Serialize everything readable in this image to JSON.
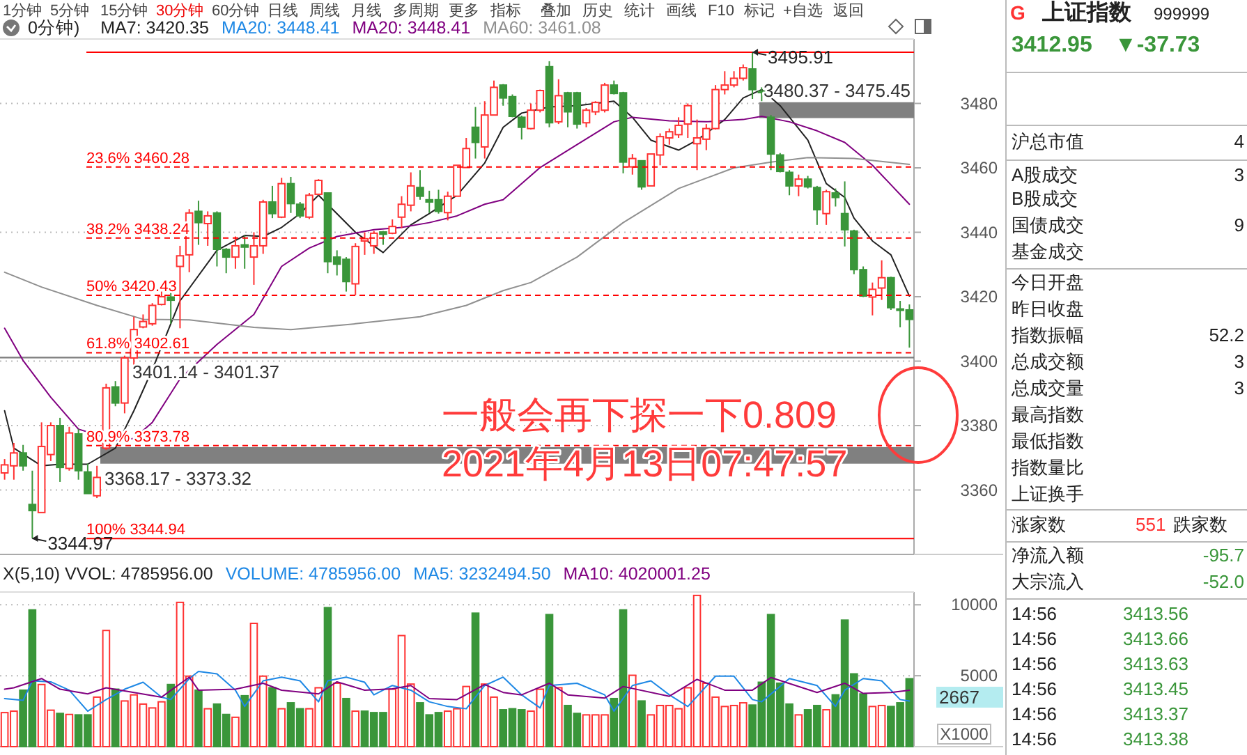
{
  "chart_data": [
    {
      "type": "candlestick",
      "categories": [
        null,
        null,
        null,
        null,
        null,
        null,
        null,
        null,
        null,
        null,
        null,
        null,
        null,
        null,
        null,
        null,
        null,
        null,
        null,
        null,
        null,
        null,
        null,
        null,
        null,
        null,
        null,
        null,
        null,
        null,
        null,
        null,
        null,
        null,
        null,
        null,
        null,
        null,
        null,
        null,
        null,
        null,
        null,
        null,
        null,
        null,
        null,
        null,
        null,
        null,
        null,
        null,
        null,
        null,
        null,
        null,
        null,
        null,
        null,
        null,
        null,
        null,
        null,
        null,
        null,
        null,
        null,
        null,
        null,
        null,
        null,
        null,
        null,
        null,
        null,
        null,
        null,
        null,
        null,
        null,
        null,
        null,
        null,
        null,
        null,
        null,
        null,
        null,
        null,
        null,
        null,
        null,
        null,
        null,
        null,
        null,
        null,
        null,
        null
      ],
      "ohlc": [
        [
          3365.3,
          3369.6,
          3363.2,
          3367.8
        ],
        [
          3367.5,
          3374.6,
          3363.2,
          3371.5
        ],
        [
          3371.5,
          3374,
          3366,
          3367.5
        ],
        [
          3355.5,
          3366,
          3344.97,
          3353.6
        ],
        [
          3353,
          3381,
          3353,
          3373.5
        ],
        [
          3371,
          3381,
          3369,
          3380
        ],
        [
          3380,
          3382.4,
          3362.5,
          3367
        ],
        [
          3366.7,
          3379.6,
          3366,
          3377.7
        ],
        [
          3377.4,
          3378.9,
          3363.2,
          3366
        ],
        [
          3365.6,
          3368.2,
          3358.9,
          3358.9
        ],
        [
          3358.2,
          3367.5,
          3357.5,
          3363.9
        ],
        [
          3373,
          3393,
          3372.4,
          3391.7
        ],
        [
          3392,
          3393.8,
          3386,
          3387
        ],
        [
          3387,
          3401.7,
          3383.8,
          3401
        ],
        [
          3401,
          3413.8,
          3398.8,
          3409.8
        ],
        [
          3410.6,
          3414.5,
          3410.2,
          3412.3
        ],
        [
          3411.6,
          3418,
          3411,
          3417.3
        ],
        [
          3417.6,
          3421.6,
          3417.3,
          3420
        ],
        [
          3419.9,
          3421.6,
          3411.6,
          3418.9
        ],
        [
          3429.4,
          3435.8,
          3410.2,
          3432.7
        ],
        [
          3433,
          3447.2,
          3427.6,
          3446
        ],
        [
          3446.5,
          3449.8,
          3436.1,
          3443
        ],
        [
          3442.7,
          3446.5,
          3435.8,
          3445.1
        ],
        [
          3446,
          3446.5,
          3429.4,
          3434.7
        ],
        [
          3434.7,
          3435.1,
          3427.3,
          3432.3
        ],
        [
          3432.3,
          3438.7,
          3428.7,
          3435.8
        ],
        [
          3436.1,
          3439,
          3428.7,
          3435.4
        ],
        [
          3432.3,
          3440,
          3423.7,
          3435.8
        ],
        [
          3435.8,
          3450.1,
          3433.3,
          3449.4
        ],
        [
          3449.4,
          3454.4,
          3444.4,
          3445.8
        ],
        [
          3444.7,
          3456.9,
          3444.4,
          3455.1
        ],
        [
          3455.1,
          3457.2,
          3446,
          3448.9
        ],
        [
          3448.7,
          3449.4,
          3444.4,
          3445.1
        ],
        [
          3444.7,
          3452.2,
          3444.1,
          3451.5
        ],
        [
          3451.8,
          3456.5,
          3451.5,
          3456.1
        ],
        [
          3452.2,
          3452.2,
          3427.3,
          3430.9
        ],
        [
          3432.3,
          3434.4,
          3426.6,
          3430.1
        ],
        [
          3431.6,
          3432.3,
          3421.6,
          3424.7
        ],
        [
          3424,
          3436.6,
          3420.5,
          3435.6
        ],
        [
          3437.3,
          3440,
          3433,
          3438
        ],
        [
          3435.8,
          3440.4,
          3433.3,
          3439.7
        ],
        [
          3440.1,
          3440.4,
          3436.1,
          3439.4
        ],
        [
          3439.7,
          3444,
          3439.4,
          3441.8
        ],
        [
          3444.7,
          3451.2,
          3441.3,
          3448.7
        ],
        [
          3448.4,
          3458.6,
          3446.5,
          3454.4
        ],
        [
          3453.9,
          3459.3,
          3450.1,
          3451.2
        ],
        [
          3450.1,
          3452.9,
          3446,
          3449.4
        ],
        [
          3450.1,
          3453.2,
          3445.8,
          3446.5
        ],
        [
          3446.1,
          3452.6,
          3443.7,
          3451.2
        ],
        [
          3451.2,
          3460.8,
          3451.2,
          3460.8
        ],
        [
          3460.1,
          3469.3,
          3460.1,
          3466
        ],
        [
          3472.6,
          3478.9,
          3462.9,
          3467.9
        ],
        [
          3466.5,
          3480.7,
          3462.9,
          3476.4
        ],
        [
          3476.4,
          3487.1,
          3476.4,
          3485
        ],
        [
          3485.7,
          3486,
          3479.3,
          3481.7
        ],
        [
          3482.1,
          3482.8,
          3475.7,
          3476
        ],
        [
          3475.7,
          3476.2,
          3468.8,
          3472.6
        ],
        [
          3472.2,
          3480,
          3471.9,
          3477.9
        ],
        [
          3477.9,
          3484.3,
          3477.2,
          3484
        ],
        [
          3491.4,
          3493.1,
          3472.6,
          3474
        ],
        [
          3474.3,
          3487.5,
          3473.6,
          3482.4
        ],
        [
          3483.3,
          3483.6,
          3472.6,
          3477.4
        ],
        [
          3483.3,
          3483.6,
          3472.2,
          3473.6
        ],
        [
          3474,
          3478.6,
          3472.6,
          3477.9
        ],
        [
          3477.4,
          3480.7,
          3476.4,
          3480.3
        ],
        [
          3477.9,
          3486.4,
          3477.2,
          3485.7
        ],
        [
          3485.7,
          3487.1,
          3482.8,
          3483.1
        ],
        [
          3483.3,
          3483.6,
          3458.3,
          3461.8
        ],
        [
          3460.3,
          3464.3,
          3457.9,
          3462.9
        ],
        [
          3462.2,
          3462.2,
          3453.2,
          3454.1
        ],
        [
          3454.4,
          3464.3,
          3454.4,
          3464.3
        ],
        [
          3464,
          3470.7,
          3460.8,
          3469.7
        ],
        [
          3469.3,
          3472.2,
          3467.2,
          3471.2
        ],
        [
          3470.3,
          3475.7,
          3469.3,
          3473.2
        ],
        [
          3473.6,
          3480,
          3469.3,
          3479.3
        ],
        [
          3467.5,
          3475,
          3459.3,
          3469.3
        ],
        [
          3468.9,
          3473.6,
          3465.5,
          3472.2
        ],
        [
          3472.2,
          3485.7,
          3471.9,
          3484.3
        ],
        [
          3484.3,
          3490,
          3482.8,
          3485.7
        ],
        [
          3485.7,
          3490,
          3485,
          3487.8
        ],
        [
          3487.8,
          3492.1,
          3487.1,
          3491.1
        ],
        [
          3490.7,
          3495.91,
          3481.4,
          3484.3
        ],
        [
          3483.8,
          3485,
          3480.7,
          3483.4
        ],
        [
          3475.7,
          3476.4,
          3459.3,
          3464.3
        ],
        [
          3464,
          3464.6,
          3458.6,
          3458.9
        ],
        [
          3458.6,
          3459.3,
          3451.5,
          3454.4
        ],
        [
          3454.4,
          3457.9,
          3451.2,
          3456.5
        ],
        [
          3456.5,
          3457.5,
          3453.6,
          3454.1
        ],
        [
          3453.9,
          3454.4,
          3442.3,
          3447
        ],
        [
          3445.8,
          3453.2,
          3442.3,
          3452.6
        ],
        [
          3452.2,
          3453.6,
          3448,
          3450.8
        ],
        [
          3445.8,
          3455.8,
          3435.6,
          3440.8
        ],
        [
          3440.4,
          3440.8,
          3427,
          3428.4
        ],
        [
          3428.4,
          3429.4,
          3419.9,
          3420.2
        ],
        [
          3419.9,
          3424.4,
          3414.2,
          3422.3
        ],
        [
          3422.7,
          3431.3,
          3419,
          3425.9
        ],
        [
          3425.9,
          3426.2,
          3415.9,
          3416.6
        ],
        [
          3416.2,
          3418.7,
          3410.5,
          3415.9
        ],
        [
          3415.9,
          3417.6,
          3404.2,
          3412.95
        ]
      ],
      "ylim": [
        3340,
        3500
      ],
      "yticks": [
        3360,
        3380,
        3400,
        3420,
        3440,
        3460,
        3480
      ],
      "grid": "y",
      "tick_labels": "y",
      "legend": "top left",
      "series": [
        {
          "name": "MA7: 3420.35",
          "type": "line",
          "color": "#222222",
          "values": [
            3384.6,
            3373,
            null,
            null,
            3367.5,
            null,
            3368,
            null,
            null,
            3368,
            null,
            null,
            3373,
            null,
            3384.6,
            null,
            3397.4,
            null,
            null,
            3418.7,
            null,
            null,
            null,
            3434.4,
            null,
            null,
            3439,
            null,
            3438.7,
            null,
            3441.5,
            null,
            3445.8,
            null,
            3451.5,
            null,
            null,
            null,
            3440,
            null,
            null,
            3433.7,
            null,
            null,
            3442.3,
            null,
            3445.8,
            null,
            null,
            3451.5,
            null,
            null,
            3461.5,
            null,
            3472.6,
            null,
            3477,
            null,
            null,
            3478.9,
            null,
            null,
            3479.3,
            null,
            null,
            null,
            3480.7,
            null,
            3475.7,
            null,
            3468.6,
            null,
            null,
            3465.5,
            null,
            3468.6,
            null,
            null,
            3475,
            null,
            3481.7,
            null,
            3484.3,
            null,
            3479.3,
            null,
            null,
            3468.6,
            null,
            3455.1,
            null,
            3450.8,
            3444.4,
            null,
            3437.3,
            null,
            3433,
            null,
            3420.2
          ]
        },
        {
          "name": "MA20: 3448.41",
          "type": "line",
          "color": "#800080",
          "values": [
            3410.2,
            null,
            3400.2,
            null,
            null,
            3388.8,
            null,
            null,
            3378.9,
            null,
            null,
            null,
            3375.3,
            null,
            3376,
            null,
            3381,
            null,
            null,
            3394.5,
            null,
            null,
            null,
            3405.2,
            null,
            null,
            null,
            3414.5,
            null,
            null,
            3429.4,
            null,
            null,
            3435.1,
            null,
            null,
            3438.7,
            null,
            null,
            null,
            3440.8,
            null,
            null,
            3441.5,
            null,
            null,
            3443,
            null,
            null,
            3445.1,
            null,
            null,
            3448.7,
            null,
            3450.1,
            null,
            null,
            null,
            3460.1,
            null,
            null,
            null,
            3467.2,
            null,
            null,
            null,
            3474.3,
            null,
            3475.7,
            null,
            null,
            null,
            3474.6,
            null,
            null,
            null,
            3474.3,
            null,
            null,
            null,
            3475,
            null,
            3476,
            null,
            null,
            3474.3,
            null,
            null,
            3471.5,
            null,
            null,
            3467.9,
            null,
            null,
            3460.8,
            null,
            null,
            null,
            3448.7
          ]
        },
        {
          "name": "MA60: 3461.08",
          "type": "line",
          "color": "#909090",
          "values": [
            3427.6,
            null,
            null,
            null,
            3423,
            null,
            null,
            null,
            null,
            null,
            3417.3,
            null,
            null,
            null,
            null,
            3413,
            null,
            null,
            null,
            null,
            3412.8,
            null,
            null,
            null,
            null,
            null,
            null,
            3410.5,
            null,
            null,
            null,
            3409.8,
            null,
            null,
            null,
            null,
            null,
            null,
            3411.6,
            null,
            null,
            null,
            null,
            null,
            null,
            3413.8,
            null,
            null,
            null,
            null,
            3417.3,
            null,
            null,
            null,
            3421.9,
            null,
            null,
            3424.4,
            null,
            null,
            null,
            null,
            3432.3,
            null,
            null,
            null,
            null,
            3443,
            null,
            null,
            null,
            null,
            null,
            3453.6,
            null,
            null,
            null,
            null,
            null,
            3460,
            null,
            null,
            null,
            3461.8,
            null,
            null,
            null,
            3463.2,
            null,
            null,
            null,
            null,
            3462.9,
            null,
            null,
            null,
            null,
            null,
            3461.1
          ]
        }
      ],
      "ref_lines": [
        {
          "axis": "y",
          "value": 3495.91,
          "color": "#ff0000",
          "line_style": "solid"
        },
        {
          "axis": "y",
          "value": 3460.28,
          "label": "23.6% 3460.28",
          "color": "#ff0000",
          "line_style": "dashed"
        },
        {
          "axis": "y",
          "value": 3438.24,
          "label": "38.2% 3438.24",
          "color": "#ff0000",
          "line_style": "dashed"
        },
        {
          "axis": "y",
          "value": 3420.43,
          "label": "50% 3420.43",
          "color": "#ff0000",
          "line_style": "dashed"
        },
        {
          "axis": "y",
          "value": 3402.61,
          "label": "61.8% 3402.61",
          "color": "#ff0000",
          "line_style": "dashed"
        },
        {
          "axis": "y",
          "value": 3373.78,
          "label": "80.9% 3373.78",
          "color": "#ff0000",
          "line_style": "dashed"
        },
        {
          "axis": "y",
          "value": 3344.94,
          "label": "100% 3344.94",
          "color": "#ff0000",
          "line_style": "solid"
        }
      ],
      "bands": [
        {
          "axis": "y",
          "from": 3401.14,
          "to": 3401.37,
          "label": "3401.14 - 3401.37",
          "color": "#808080"
        },
        {
          "axis": "y",
          "from": 3368.17,
          "to": 3373.32,
          "label": "3368.17 - 3373.32",
          "color": "#808080"
        },
        {
          "axis": "y",
          "from": 3475.45,
          "to": 3480.37,
          "label": "3480.37 - 3475.45",
          "color": "#808080"
        }
      ],
      "annotations": [
        "0分钟)",
        "MA20: 3448.41",
        "3495.91",
        "3344.97",
        "一般会再下探一下0.809",
        "2021年4月13日07:47:57"
      ]
    },
    {
      "type": "bar",
      "categories": [
        null,
        null,
        null,
        null,
        null,
        null,
        null,
        null,
        null,
        null,
        null,
        null,
        null,
        null,
        null,
        null,
        null,
        null,
        null,
        null,
        null,
        null,
        null,
        null,
        null,
        null,
        null,
        null,
        null,
        null,
        null,
        null,
        null,
        null,
        null,
        null,
        null,
        null,
        null,
        null,
        null,
        null,
        null,
        null,
        null,
        null,
        null,
        null,
        null,
        null,
        null,
        null,
        null,
        null,
        null,
        null,
        null,
        null,
        null,
        null,
        null,
        null,
        null,
        null,
        null,
        null,
        null,
        null,
        null,
        null,
        null,
        null,
        null,
        null,
        null,
        null,
        null,
        null,
        null,
        null,
        null,
        null,
        null,
        null,
        null,
        null,
        null,
        null,
        null,
        null,
        null,
        null,
        null,
        null,
        null,
        null,
        null,
        null,
        null
      ],
      "values": [
        2400,
        2500,
        3980,
        9640,
        4380,
        2570,
        2340,
        2270,
        2240,
        2240,
        3490,
        8190,
        4050,
        3220,
        3650,
        3000,
        2730,
        3160,
        4380,
        10170,
        4970,
        3980,
        2670,
        3000,
        2270,
        2070,
        3590,
        8690,
        4970,
        4150,
        2670,
        3090,
        2670,
        2670,
        4150,
        9800,
        4470,
        3390,
        2500,
        2500,
        2400,
        2400,
        4050,
        7830,
        4410,
        3090,
        2240,
        2400,
        2500,
        2670,
        4240,
        9410,
        4410,
        3490,
        2600,
        2670,
        2600,
        2500,
        4050,
        9310,
        4150,
        2900,
        2340,
        2240,
        2240,
        2240,
        3390,
        9640,
        5030,
        3220,
        2240,
        2900,
        2900,
        2670,
        4150,
        10660,
        4470,
        3490,
        2830,
        2900,
        3090,
        2930,
        4540,
        9310,
        4470,
        3000,
        2240,
        2600,
        2900,
        2600,
        3650,
        8920,
        5130,
        3720,
        2830,
        2900,
        2830,
        3090,
        4786
      ],
      "colors": [
        "#ff3232",
        "#ff3232",
        "#3a963a",
        "#3a963a",
        "#ff3232",
        "#ff3232",
        "#3a963a",
        "#ff3232",
        "#3a963a",
        "#3a963a",
        "#ff3232",
        "#ff3232",
        "#3a963a",
        "#ff3232",
        "#ff3232",
        "#ff3232",
        "#ff3232",
        "#ff3232",
        "#3a963a",
        "#ff3232",
        "#ff3232",
        "#3a963a",
        "#ff3232",
        "#3a963a",
        "#3a963a",
        "#ff3232",
        "#3a963a",
        "#ff3232",
        "#ff3232",
        "#3a963a",
        "#ff3232",
        "#3a963a",
        "#3a963a",
        "#ff3232",
        "#ff3232",
        "#3a963a",
        "#ff3232",
        "#3a963a",
        "#ff3232",
        "#3a963a",
        "#3a963a",
        "#3a963a",
        "#ff3232",
        "#ff3232",
        "#ff3232",
        "#3a963a",
        "#3a963a",
        "#3a963a",
        "#ff3232",
        "#ff3232",
        "#ff3232",
        "#3a963a",
        "#ff3232",
        "#ff3232",
        "#3a963a",
        "#3a963a",
        "#3a963a",
        "#ff3232",
        "#ff3232",
        "#3a963a",
        "#ff3232",
        "#3a963a",
        "#3a963a",
        "#ff3232",
        "#ff3232",
        "#ff3232",
        "#3a963a",
        "#3a963a",
        "#ff3232",
        "#3a963a",
        "#ff3232",
        "#ff3232",
        "#ff3232",
        "#ff3232",
        "#ff3232",
        "#ff3232",
        "#ff3232",
        "#ff3232",
        "#ff3232",
        "#ff3232",
        "#ff3232",
        "#3a963a",
        "#3a963a",
        "#3a963a",
        "#3a963a",
        "#3a963a",
        "#ff3232",
        "#3a963a",
        "#3a963a",
        "#ff3232",
        "#3a963a",
        "#3a963a",
        "#3a963a",
        "#3a963a",
        "#ff3232",
        "#ff3232",
        "#3a963a",
        "#3a963a",
        "#3a963a"
      ],
      "ylim": [
        0,
        10900
      ],
      "yticks": [
        5000,
        10000
      ],
      "grid": "y",
      "tick_labels": "y",
      "legend": "top",
      "series": [
        {
          "name": "MA5: 3232494.50",
          "type": "line",
          "color": "#1e88e5",
          "values": [
            3390,
            null,
            3260,
            4640,
            null,
            4570,
            null,
            3980,
            null,
            2500,
            null,
            3320,
            null,
            4050,
            null,
            4540,
            null,
            3490,
            3320,
            null,
            4800,
            5300,
            null,
            5130,
            null,
            3980,
            2830,
            null,
            4640,
            null,
            4900,
            null,
            4640,
            null,
            3160,
            4640,
            null,
            4900,
            null,
            4540,
            3650,
            null,
            4310,
            null,
            3980,
            null,
            3160,
            null,
            2830,
            null,
            2670,
            null,
            4310,
            null,
            4900,
            null,
            3650,
            null,
            2730,
            4310,
            null,
            null,
            4470,
            null,
            null,
            3650,
            2500,
            null,
            4310,
            null,
            4640,
            null,
            3650,
            null,
            2830,
            null,
            null,
            4970,
            null,
            4970,
            null,
            3320,
            3160,
            null,
            null,
            4800,
            null,
            null,
            4310,
            null,
            2830,
            3980,
            null,
            4800,
            null,
            4640,
            null,
            3320,
            3220
          ]
        },
        {
          "name": "MA10: 4020001.25",
          "type": "line",
          "color": "#800080",
          "values": [
            4050,
            4150,
            null,
            null,
            4800,
            null,
            4050,
            null,
            null,
            3720,
            null,
            4150,
            null,
            null,
            3820,
            null,
            null,
            3490,
            null,
            null,
            4900,
            3980,
            null,
            null,
            null,
            4050,
            null,
            null,
            4470,
            null,
            3980,
            null,
            null,
            null,
            3720,
            null,
            4570,
            null,
            null,
            3980,
            null,
            null,
            4080,
            null,
            4310,
            null,
            3390,
            null,
            null,
            3320,
            null,
            null,
            4380,
            null,
            3820,
            null,
            3650,
            null,
            null,
            4470,
            null,
            3650,
            null,
            null,
            null,
            3420,
            null,
            4240,
            null,
            null,
            null,
            null,
            3550,
            null,
            null,
            4740,
            null,
            null,
            3980,
            null,
            null,
            3980,
            null,
            4870,
            null,
            null,
            null,
            null,
            3820,
            null,
            null,
            4470,
            null,
            3750,
            null,
            null,
            3820,
            null,
            3980
          ]
        }
      ],
      "annotations": [
        "X(5,10) VVOL: 4785956.00",
        "VOLUME: 4785956.00",
        "2667",
        "X1000"
      ]
    },
    {
      "type": "other",
      "annotations": [
        "1分钟",
        "5分钟",
        "15分钟",
        "30分钟",
        "60分钟",
        "日线",
        "周线",
        "月线",
        "多周期",
        "更多",
        "指标",
        "叠加",
        "历史",
        "统计",
        "画线",
        "F10",
        "标记",
        "+自选",
        "返回"
      ]
    },
    {
      "type": "other",
      "annotations": [
        "G",
        "上证指数",
        "999999",
        "3412.95",
        "▼-37.73",
        "沪总市值",
        "4",
        "A股成交",
        "3",
        "B股成交",
        "国债成交",
        "9",
        "基金成交",
        "今日开盘",
        "昨日收盘",
        "指数振幅",
        "52.2",
        "总成交额",
        "3",
        "总成交量",
        "3",
        "最高指数",
        "最低指数",
        "指数量比",
        "上证换手",
        "涨家数",
        "551",
        "跌家数",
        "净流入额",
        "-95.7",
        "大宗流入",
        "-52.0",
        "14:56",
        "3413.56",
        "14:56",
        "3413.66",
        "14:56",
        "3413.63",
        "14:56",
        "3413.45",
        "14:56",
        "3413.37",
        "14:56",
        "3413.38"
      ]
    }
  ]
}
